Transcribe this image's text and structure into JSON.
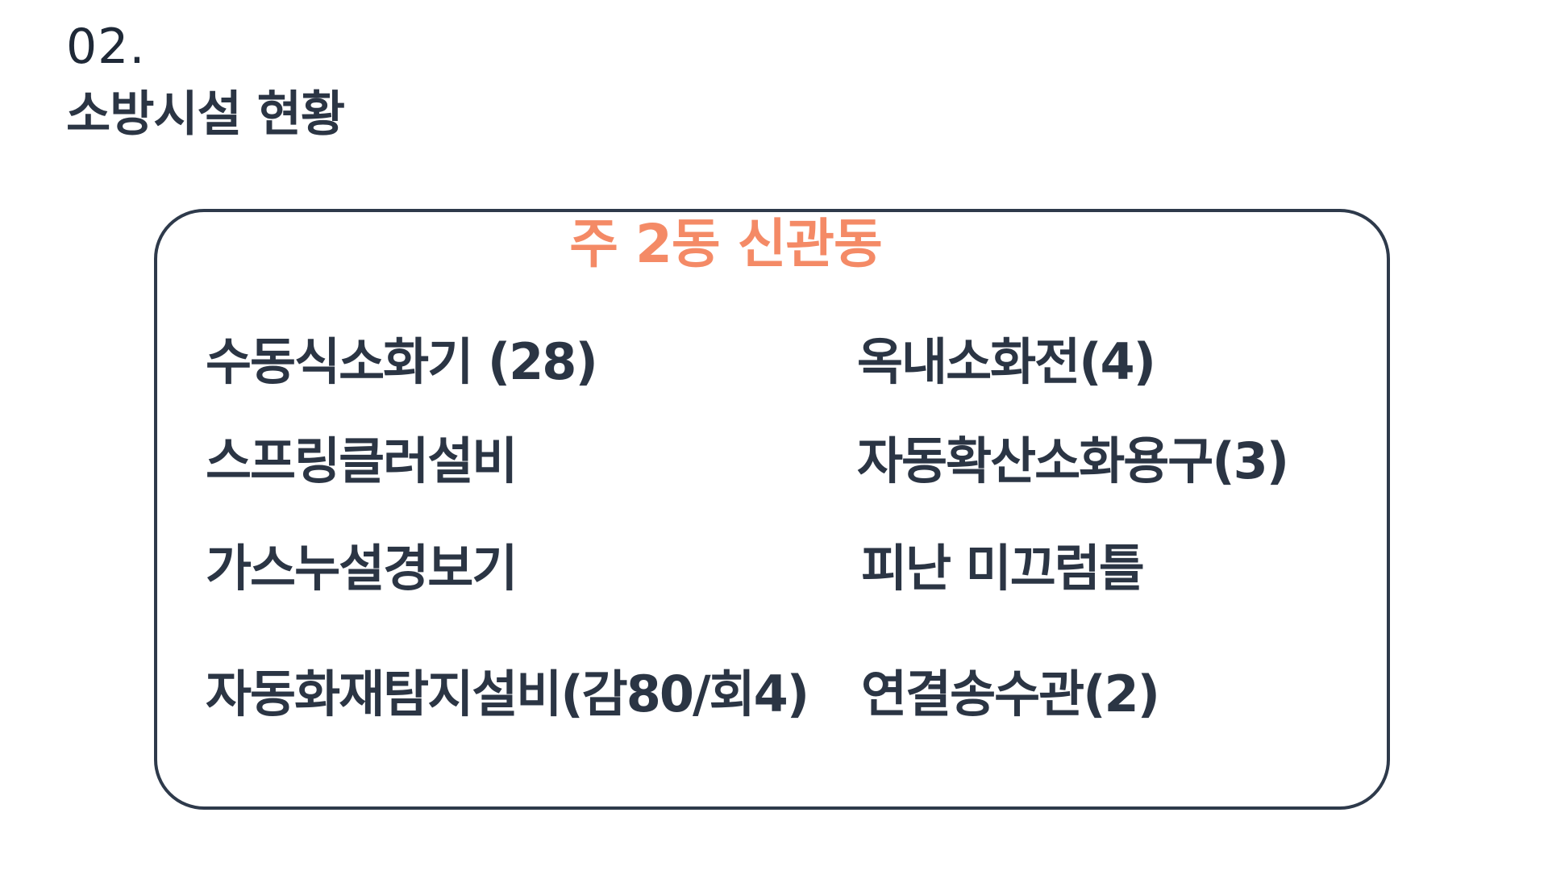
{
  "section": {
    "number": "02.",
    "title": "소방시설 현황"
  },
  "box": {
    "heading": "주 2동 신관동",
    "heading_color": "#f48a66",
    "border_color": "#2e3a4b",
    "left_column": [
      "수동식소화기 (28)",
      "스프링클러설비",
      "가스누설경보기",
      "자동화재탐지설비(감80/회4)"
    ],
    "right_column": [
      "옥내소화전(4)",
      "자동확산소화용구(3)",
      "피난 미끄럼틀",
      "연결송수관(2)"
    ]
  }
}
